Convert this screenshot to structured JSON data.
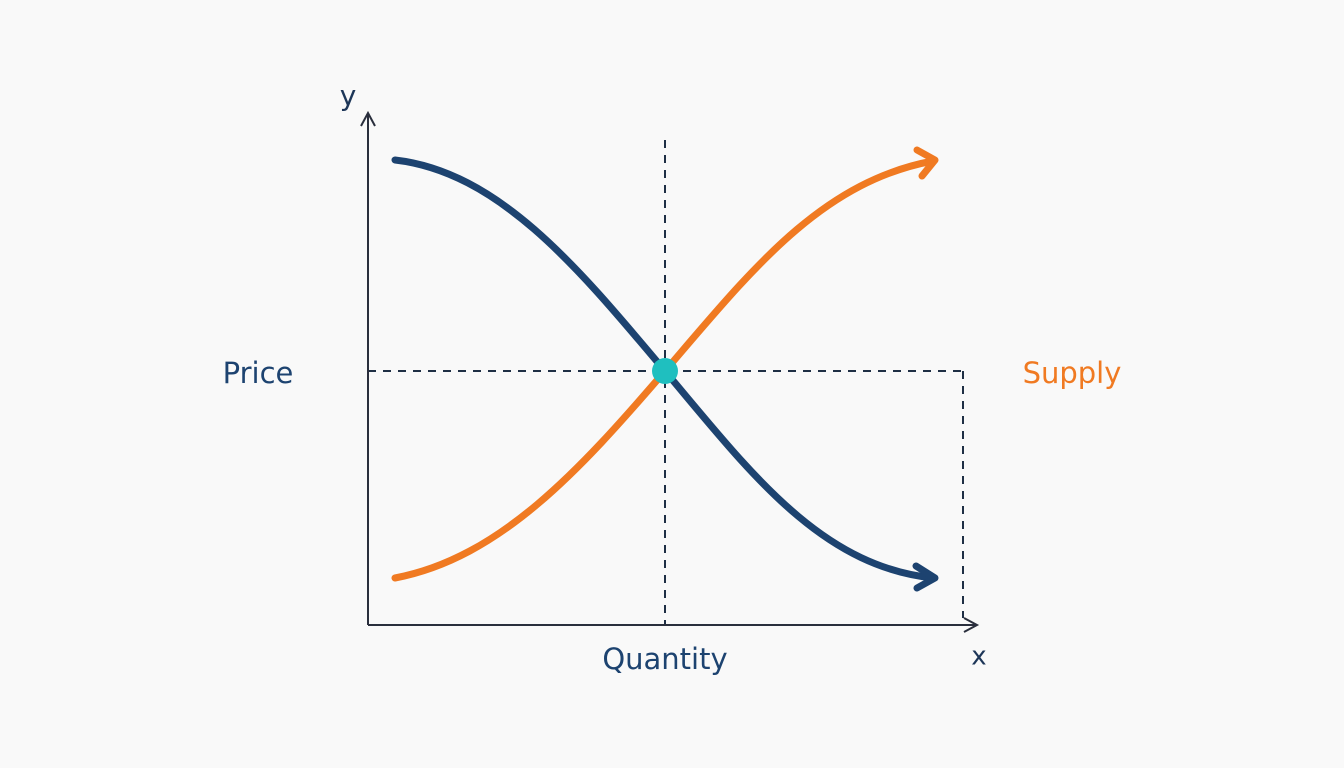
{
  "axes": {
    "y": "y",
    "x": "x"
  },
  "labels": {
    "price": "Price",
    "quantity": "Quantity",
    "supply": "Supply"
  }
}
